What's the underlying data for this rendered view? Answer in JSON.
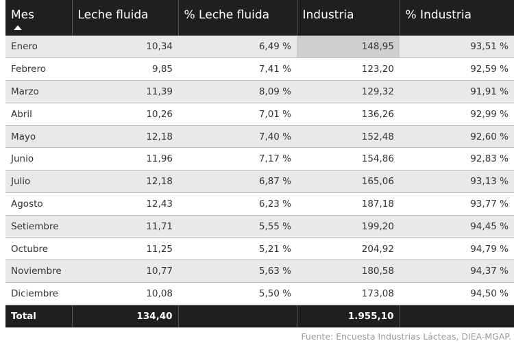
{
  "header": {
    "columns": [
      "Mes",
      "Leche fluida",
      "% Leche fluida",
      "Industria",
      "% Industria"
    ]
  },
  "table": {
    "rows": [
      [
        "Enero",
        "10,34",
        "6,49 %",
        "148,95",
        "93,51 %"
      ],
      [
        "Febrero",
        "9,85",
        "7,41 %",
        "123,20",
        "92,59 %"
      ],
      [
        "Marzo",
        "11,39",
        "8,09 %",
        "129,32",
        "91,91 %"
      ],
      [
        "Abril",
        "10,26",
        "7,01 %",
        "136,26",
        "92,99 %"
      ],
      [
        "Mayo",
        "12,18",
        "7,40 %",
        "152,48",
        "92,60 %"
      ],
      [
        "Junio",
        "11,96",
        "7,17 %",
        "154,86",
        "92,83 %"
      ],
      [
        "Julio",
        "12,18",
        "6,87 %",
        "165,06",
        "93,13 %"
      ],
      [
        "Agosto",
        "12,43",
        "6,23 %",
        "187,18",
        "93,77 %"
      ],
      [
        "Setiembre",
        "11,71",
        "5,55 %",
        "199,20",
        "94,45 %"
      ],
      [
        "Octubre",
        "11,25",
        "5,21 %",
        "204,92",
        "94,79 %"
      ],
      [
        "Noviembre",
        "10,77",
        "5,63 %",
        "180,58",
        "94,37 %"
      ],
      [
        "Diciembre",
        "10,08",
        "5,50 %",
        "173,08",
        "94,50 %"
      ]
    ]
  },
  "total": {
    "label": "Total",
    "leche_fluida": "134,40",
    "industria": "1.955,10"
  },
  "footer": {
    "source": "Fuente: Encuesta Industrias Lácteas, DIEA-MGAP."
  }
}
